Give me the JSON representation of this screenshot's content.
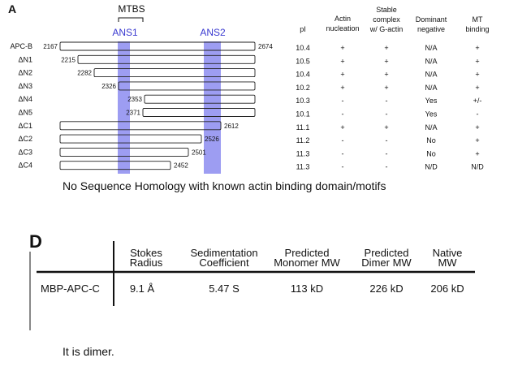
{
  "panel_a": {
    "letter": "A",
    "mtbs_label": "MTBS",
    "ans1_label": "ANS1",
    "ans2_label": "ANS2",
    "headers": {
      "pi": "pI",
      "actin": [
        "Actin",
        "nucleation"
      ],
      "stable": [
        "Stable",
        "complex",
        "w/ G-actin"
      ],
      "dominant": [
        "Dominant",
        "negative"
      ],
      "mt": [
        "MT",
        "binding"
      ]
    },
    "constructs": [
      {
        "name": "APC-B",
        "start": "2167",
        "end": "2674",
        "pi": "10.4",
        "actin": "+",
        "stable": "+",
        "dominant": "N/A",
        "mt": "+"
      },
      {
        "name": "ΔN1",
        "start": "2215",
        "end": "",
        "pi": "10.5",
        "actin": "+",
        "stable": "+",
        "dominant": "N/A",
        "mt": "+"
      },
      {
        "name": "ΔN2",
        "start": "2282",
        "end": "",
        "pi": "10.4",
        "actin": "+",
        "stable": "+",
        "dominant": "N/A",
        "mt": "+"
      },
      {
        "name": "ΔN3",
        "start": "2326",
        "end": "",
        "pi": "10.2",
        "actin": "+",
        "stable": "+",
        "dominant": "N/A",
        "mt": "+"
      },
      {
        "name": "ΔN4",
        "start": "2353",
        "end": "",
        "pi": "10.3",
        "actin": "-",
        "stable": "-",
        "dominant": "Yes",
        "mt": "+/-"
      },
      {
        "name": "ΔN5",
        "start": "2371",
        "end": "",
        "pi": "10.1",
        "actin": "-",
        "stable": "-",
        "dominant": "Yes",
        "mt": "-"
      },
      {
        "name": "ΔC1",
        "start": "",
        "end": "2612",
        "pi": "11.1",
        "actin": "+",
        "stable": "+",
        "dominant": "N/A",
        "mt": "+"
      },
      {
        "name": "ΔC2",
        "start": "",
        "end": "2526",
        "pi": "11.2",
        "actin": "-",
        "stable": "-",
        "dominant": "No",
        "mt": "+"
      },
      {
        "name": "ΔC3",
        "start": "",
        "end": "2501",
        "pi": "11.3",
        "actin": "-",
        "stable": "-",
        "dominant": "No",
        "mt": "+"
      },
      {
        "name": "ΔC4",
        "start": "",
        "end": "2452",
        "pi": "11.3",
        "actin": "-",
        "stable": "-",
        "dominant": "N/D",
        "mt": "N/D"
      }
    ],
    "caption": "No Sequence Homology with known actin binding domain/motifs"
  },
  "panel_d": {
    "letter": "D",
    "col_headers": [
      [
        "Stokes",
        "Radius"
      ],
      [
        "Sedimentation",
        "Coefficient"
      ],
      [
        "Predicted",
        "Monomer MW"
      ],
      [
        "Predicted",
        "Dimer MW"
      ],
      [
        "Native",
        "MW"
      ]
    ],
    "row": {
      "name": "MBP-APC-C",
      "values": [
        "9.1 Å",
        "5.47 S",
        "113 kD",
        "226 kD",
        "206 kD"
      ]
    },
    "caption": "It is dimer."
  },
  "colors": {
    "domain_band": "#8c8cf0",
    "domain_label": "#3a3ad0",
    "text": "#111111"
  }
}
